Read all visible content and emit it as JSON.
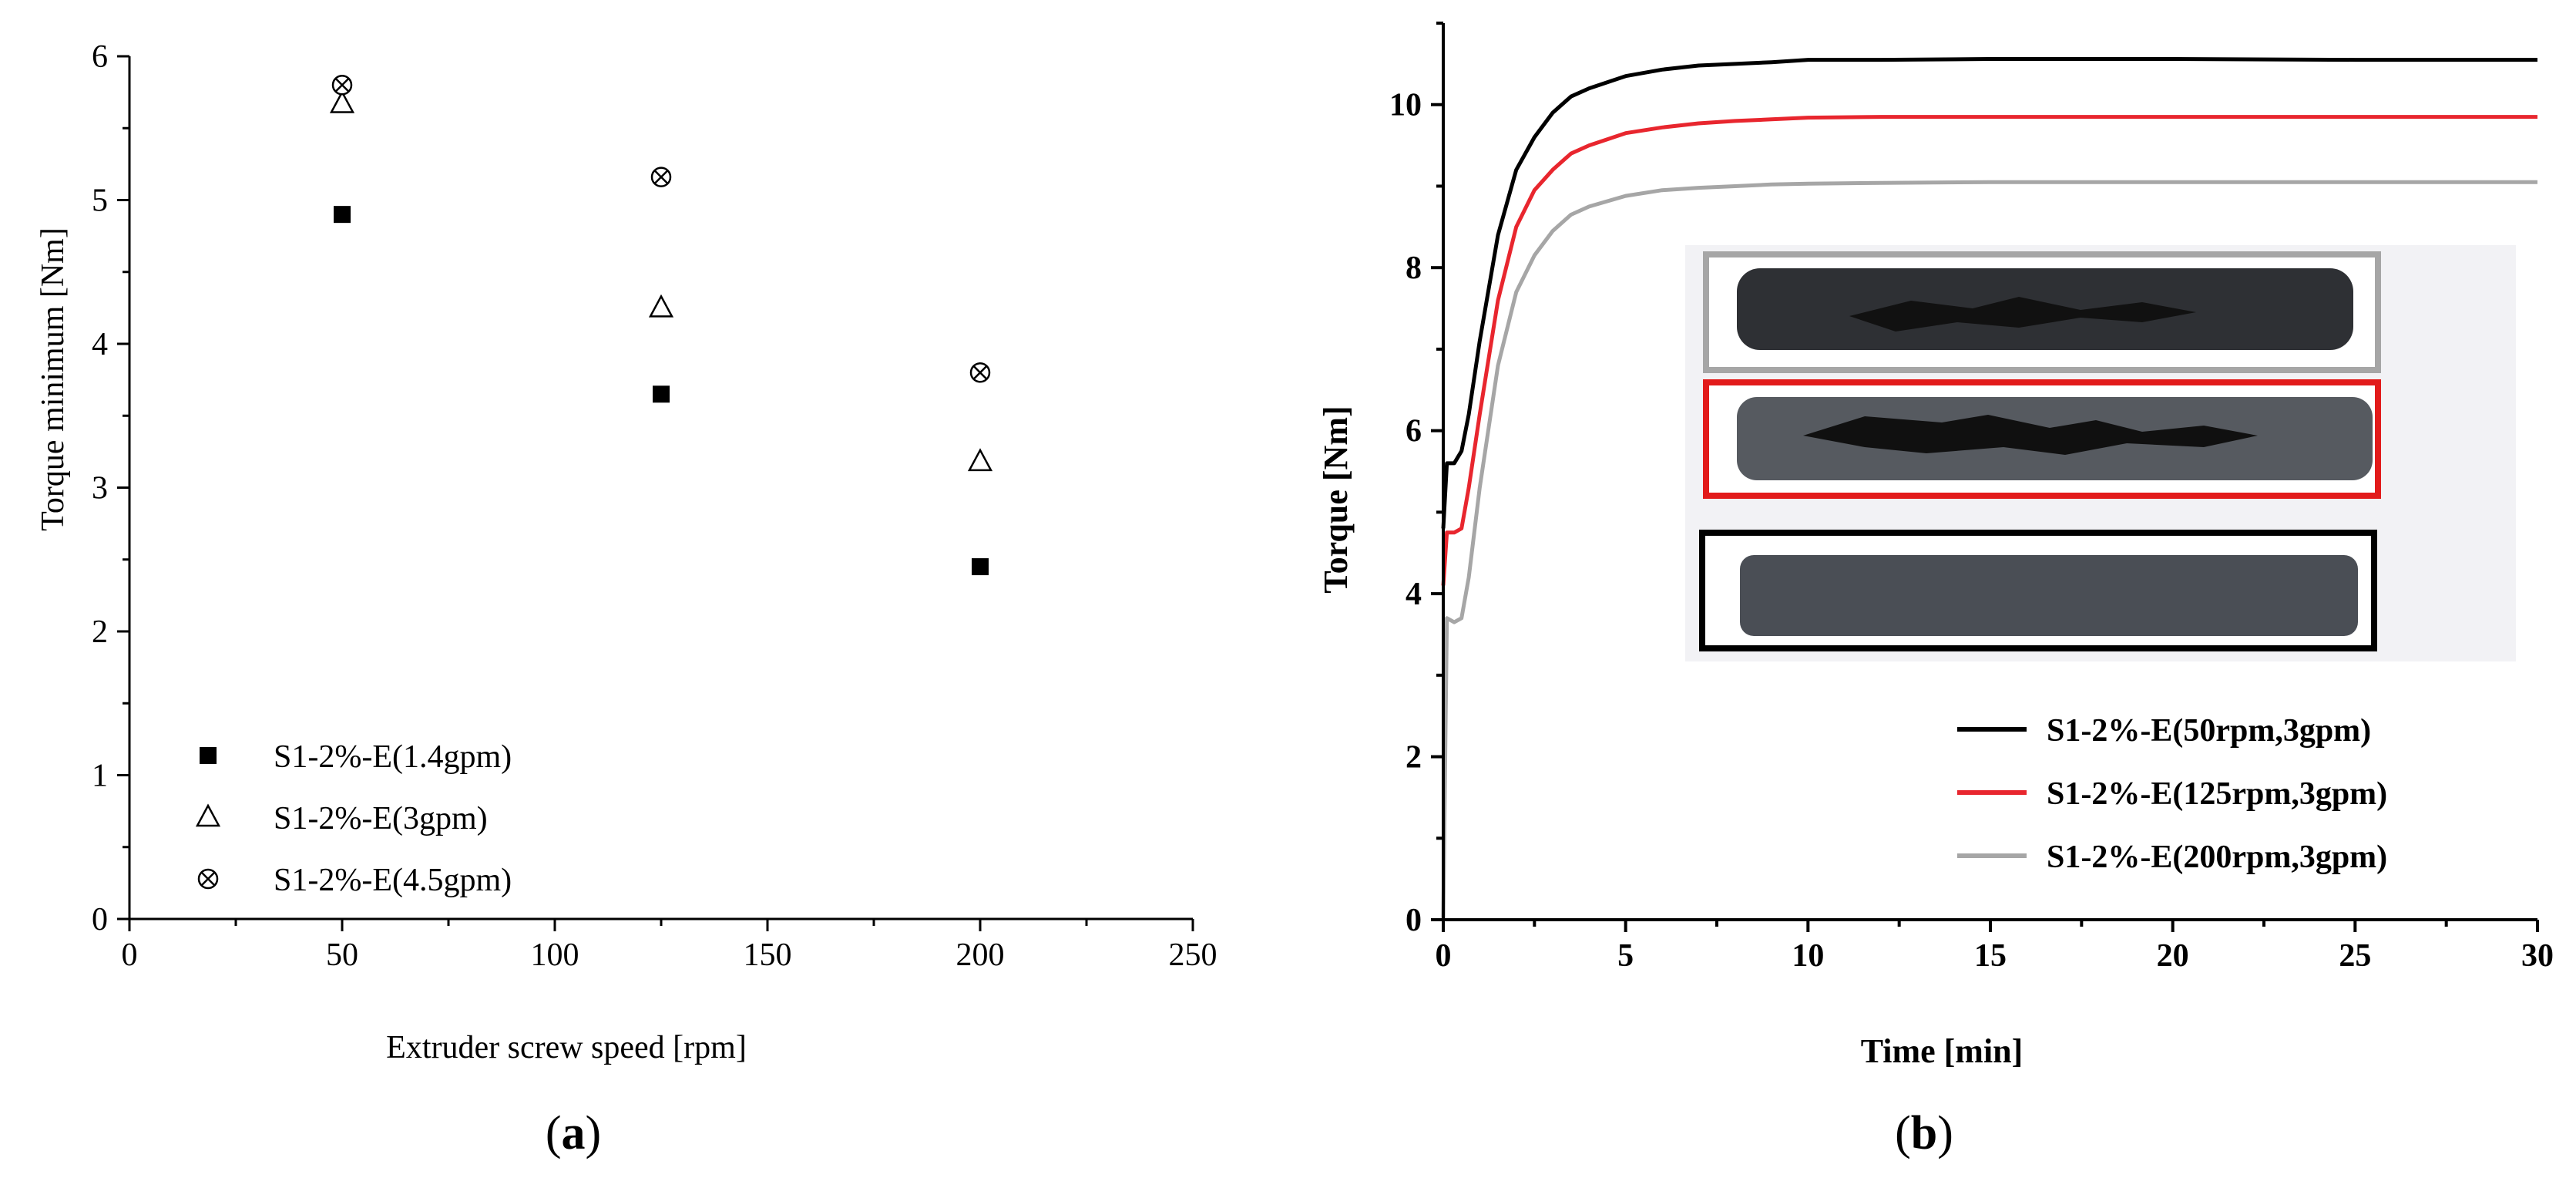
{
  "chart_data": [
    {
      "panel_label": "a",
      "type": "scatter",
      "xlabel": "Extruder screw speed [rpm]",
      "ylabel": "Torque minimum [Nm]",
      "xlim": [
        0,
        250
      ],
      "ylim": [
        0,
        6
      ],
      "x_ticks": [
        "0",
        "50",
        "100",
        "150",
        "200",
        "250"
      ],
      "y_ticks": [
        "0",
        "1",
        "2",
        "3",
        "4",
        "5",
        "6"
      ],
      "grid": false,
      "legend_position": "bottom-left",
      "series": [
        {
          "name": "S1-2%-E(1.4gpm)",
          "marker": "filled-square",
          "x": [
            50,
            125,
            200
          ],
          "y": [
            4.9,
            3.65,
            2.45
          ]
        },
        {
          "name": "S1-2%-E(3gpm)",
          "marker": "open-triangle",
          "x": [
            50,
            125,
            200
          ],
          "y": [
            5.67,
            4.25,
            3.18
          ]
        },
        {
          "name": "S1-2%-E(4.5gpm)",
          "marker": "crossed-circle",
          "x": [
            50,
            125,
            200
          ],
          "y": [
            5.8,
            5.16,
            3.8
          ]
        }
      ]
    },
    {
      "panel_label": "b",
      "type": "line",
      "xlabel": "Time [min]",
      "ylabel": "Torque [Nm]",
      "xlim": [
        0,
        30
      ],
      "ylim": [
        0,
        11
      ],
      "x_ticks": [
        "0",
        "5",
        "10",
        "15",
        "20",
        "25",
        "30"
      ],
      "y_ticks": [
        "0",
        "2",
        "4",
        "6",
        "8",
        "10"
      ],
      "grid": false,
      "legend_position": "bottom-right",
      "inset": "photographs of three extruded samples in grey, red and black frames",
      "series": [
        {
          "name": "S1-2%-E(50rpm,3gpm)",
          "color": "#000000",
          "x": [
            0,
            0.1,
            0.3,
            0.5,
            0.7,
            1,
            1.5,
            2,
            2.5,
            3,
            3.5,
            4,
            5,
            6,
            7,
            8,
            9,
            10,
            12,
            15,
            20,
            25,
            30
          ],
          "y": [
            4.8,
            5.6,
            5.6,
            5.75,
            6.2,
            7.1,
            8.4,
            9.2,
            9.6,
            9.9,
            10.1,
            10.2,
            10.35,
            10.43,
            10.48,
            10.5,
            10.52,
            10.55,
            10.55,
            10.56,
            10.56,
            10.55,
            10.55
          ]
        },
        {
          "name": "S1-2%-E(125rpm,3gpm)",
          "color": "#e8262e",
          "x": [
            0,
            0.1,
            0.3,
            0.5,
            0.7,
            1,
            1.5,
            2,
            2.5,
            3,
            3.5,
            4,
            5,
            6,
            7,
            8,
            9,
            10,
            12,
            15,
            20,
            25,
            30
          ],
          "y": [
            4.1,
            4.75,
            4.75,
            4.8,
            5.3,
            6.2,
            7.6,
            8.5,
            8.95,
            9.2,
            9.4,
            9.5,
            9.65,
            9.72,
            9.77,
            9.8,
            9.82,
            9.84,
            9.85,
            9.85,
            9.85,
            9.85,
            9.85
          ]
        },
        {
          "name": "S1-2%-E(200rpm,3gpm)",
          "color": "#a6a6a6",
          "x": [
            0,
            0.1,
            0.3,
            0.5,
            0.7,
            1,
            1.5,
            2,
            2.5,
            3,
            3.5,
            4,
            5,
            6,
            7,
            8,
            9,
            10,
            12,
            15,
            20,
            25,
            30
          ],
          "y": [
            0,
            3.7,
            3.65,
            3.7,
            4.2,
            5.3,
            6.8,
            7.7,
            8.15,
            8.45,
            8.65,
            8.75,
            8.88,
            8.95,
            8.98,
            9.0,
            9.02,
            9.03,
            9.04,
            9.05,
            9.05,
            9.05,
            9.05
          ]
        }
      ]
    }
  ]
}
